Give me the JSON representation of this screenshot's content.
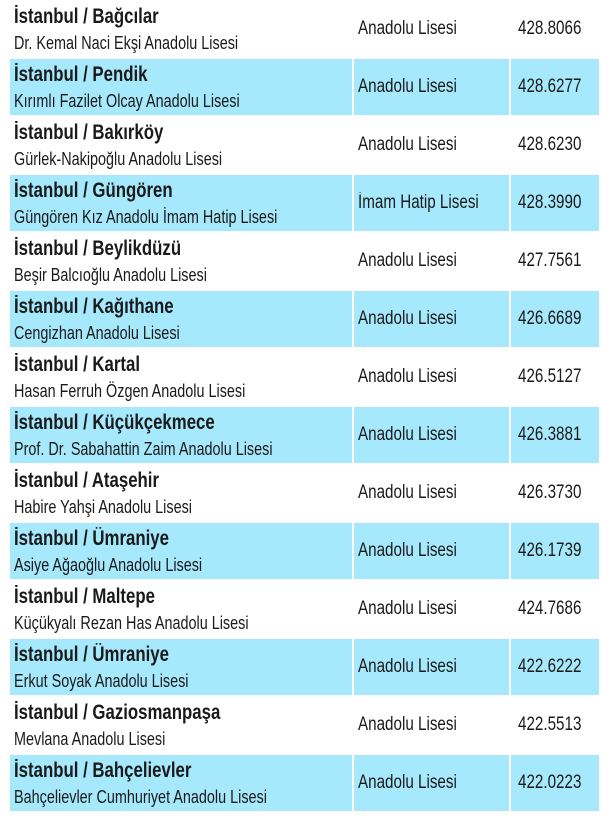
{
  "accent_color": "#a6e8fc",
  "rows": [
    {
      "location": "İstanbul / Bağcılar",
      "school": "Dr. Kemal Naci Ekşi Anadolu Lisesi",
      "type": "Anadolu Lisesi",
      "score": "428.8066",
      "highlight": false
    },
    {
      "location": "İstanbul / Pendik",
      "school": "Kırımlı Fazilet Olcay Anadolu Lisesi",
      "type": "Anadolu Lisesi",
      "score": "428.6277",
      "highlight": true
    },
    {
      "location": "İstanbul / Bakırköy",
      "school": "Gürlek-Nakipoğlu Anadolu Lisesi",
      "type": "Anadolu Lisesi",
      "score": "428.6230",
      "highlight": false
    },
    {
      "location": "İstanbul / Güngören",
      "school": "Güngören Kız Anadolu İmam Hatip Lisesi",
      "type": "İmam Hatip Lisesi",
      "score": "428.3990",
      "highlight": true
    },
    {
      "location": "İstanbul / Beylikdüzü",
      "school": "Beşir Balcıoğlu Anadolu Lisesi",
      "type": "Anadolu Lisesi",
      "score": "427.7561",
      "highlight": false
    },
    {
      "location": "İstanbul / Kağıthane",
      "school": "Cengizhan Anadolu Lisesi",
      "type": "Anadolu Lisesi",
      "score": "426.6689",
      "highlight": true
    },
    {
      "location": "İstanbul / Kartal",
      "school": "Hasan Ferruh Özgen Anadolu Lisesi",
      "type": "Anadolu Lisesi",
      "score": "426.5127",
      "highlight": false
    },
    {
      "location": "İstanbul / Küçükçekmece",
      "school": "Prof. Dr. Sabahattin Zaim Anadolu Lisesi",
      "type": "Anadolu Lisesi",
      "score": "426.3881",
      "highlight": true
    },
    {
      "location": "İstanbul / Ataşehir",
      "school": "Habire Yahşi Anadolu Lisesi",
      "type": "Anadolu Lisesi",
      "score": "426.3730",
      "highlight": false
    },
    {
      "location": "İstanbul / Ümraniye",
      "school": "Asiye Ağaoğlu Anadolu Lisesi",
      "type": "Anadolu Lisesi",
      "score": "426.1739",
      "highlight": true
    },
    {
      "location": "İstanbul / Maltepe",
      "school": "Küçükyalı Rezan Has Anadolu Lisesi",
      "type": "Anadolu Lisesi",
      "score": "424.7686",
      "highlight": false
    },
    {
      "location": "İstanbul / Ümraniye",
      "school": "Erkut Soyak Anadolu Lisesi",
      "type": "Anadolu Lisesi",
      "score": "422.6222",
      "highlight": true
    },
    {
      "location": "İstanbul / Gaziosmanpaşa",
      "school": "Mevlana Anadolu Lisesi",
      "type": "Anadolu Lisesi",
      "score": "422.5513",
      "highlight": false
    },
    {
      "location": "İstanbul / Bahçelievler",
      "school": "Bahçelievler Cumhuriyet Anadolu Lisesi",
      "type": "Anadolu Lisesi",
      "score": "422.0223",
      "highlight": true
    }
  ]
}
